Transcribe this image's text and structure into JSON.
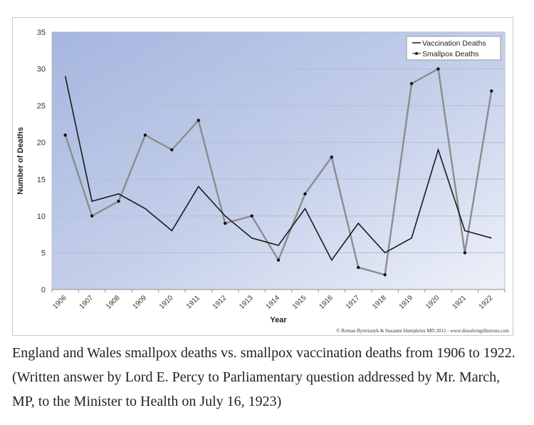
{
  "chart_data": {
    "type": "line",
    "title": "",
    "xlabel": "Year",
    "ylabel": "Number of Deaths",
    "ylim": [
      0,
      35
    ],
    "yticks": [
      0,
      5,
      10,
      15,
      20,
      25,
      30,
      35
    ],
    "grid": "horizontal",
    "legend_position": "top-right",
    "categories": [
      "1906",
      "1907",
      "1908",
      "1909",
      "1910",
      "1911",
      "1912",
      "1913",
      "1914",
      "1915",
      "1916",
      "1917",
      "1918",
      "1919",
      "1920",
      "1921",
      "1922"
    ],
    "series": [
      {
        "name": "Vaccination Deaths",
        "color": "#1a1a1a",
        "marker": "none",
        "values": [
          29,
          12,
          13,
          11,
          8,
          14,
          10,
          7,
          6,
          11,
          4,
          9,
          5,
          7,
          19,
          8,
          7
        ]
      },
      {
        "name": "Smallpox Deaths",
        "color": "#8c8c8c",
        "marker": "dot",
        "values": [
          21,
          10,
          12,
          21,
          19,
          23,
          9,
          10,
          4,
          13,
          18,
          3,
          2,
          28,
          30,
          5,
          27
        ]
      }
    ],
    "credit": "© Roman Bystrianyk & Suzanne Humphries MD 2012 - www.dissolvingillusions.com"
  },
  "caption": "England and Wales smallpox deaths vs. smallpox vaccination deaths from 1906 to 1922. (Written answer by Lord E. Percy to Parliamentary question addressed by Mr. March, MP, to the Minister to Health on July 16, 1923)"
}
